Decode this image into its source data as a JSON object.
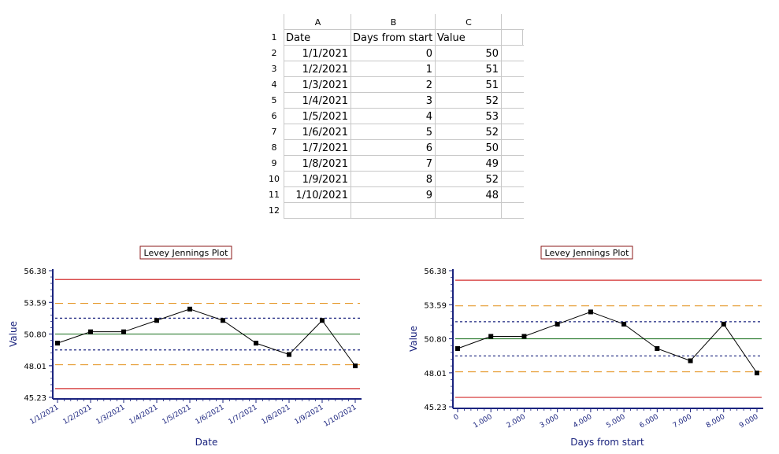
{
  "spreadsheet": {
    "columns": [
      "A",
      "B",
      "C"
    ],
    "row_numbers": [
      "1",
      "2",
      "3",
      "4",
      "5",
      "6",
      "7",
      "8",
      "9",
      "10",
      "11",
      "12"
    ],
    "header": [
      "Date",
      "Days from start",
      "Value"
    ],
    "rows": [
      [
        "1/1/2021",
        "0",
        "50"
      ],
      [
        "1/2/2021",
        "1",
        "51"
      ],
      [
        "1/3/2021",
        "2",
        "51"
      ],
      [
        "1/4/2021",
        "3",
        "52"
      ],
      [
        "1/5/2021",
        "4",
        "53"
      ],
      [
        "1/6/2021",
        "5",
        "52"
      ],
      [
        "1/7/2021",
        "6",
        "50"
      ],
      [
        "1/8/2021",
        "7",
        "49"
      ],
      [
        "1/9/2021",
        "8",
        "52"
      ],
      [
        "1/10/2021",
        "9",
        "48"
      ]
    ]
  },
  "chart_data": [
    {
      "type": "line",
      "title": "Levey Jennings Plot",
      "xlabel": "Date",
      "ylabel": "Value",
      "categories": [
        "1/1/2021",
        "1/2/2021",
        "1/3/2021",
        "1/4/2021",
        "1/5/2021",
        "1/6/2021",
        "1/7/2021",
        "1/8/2021",
        "1/9/2021",
        "1/10/2021"
      ],
      "values": [
        50,
        51,
        51,
        52,
        53,
        52,
        50,
        49,
        52,
        48
      ],
      "ylim": [
        45.23,
        56.38
      ],
      "yticks": [
        "45.23",
        "48.01",
        "50.80",
        "53.59",
        "56.38"
      ],
      "ytick_values": [
        45.23,
        48.01,
        50.8,
        53.59,
        56.38
      ],
      "control_lines": {
        "mean": 50.8,
        "sd1": [
          49.4,
          52.2
        ],
        "sd2": [
          48.1,
          53.5
        ],
        "sd3": [
          46.0,
          55.6
        ]
      },
      "colors": {
        "series": "#000000",
        "mean": "#2e7d32",
        "sd1": "#1a237e",
        "sd2": "#e69a2e",
        "sd3": "#d32f2f",
        "axis": "#1a237e",
        "title_border": "#8b1a1a"
      }
    },
    {
      "type": "line",
      "title": "Levey Jennings Plot",
      "xlabel": "Days from start",
      "ylabel": "Value",
      "x": [
        0,
        1,
        2,
        3,
        4,
        5,
        6,
        7,
        8,
        9
      ],
      "xticks": [
        "0",
        "1.000",
        "2.000",
        "3.000",
        "4.000",
        "5.000",
        "6.000",
        "7.000",
        "8.000",
        "9.000"
      ],
      "values": [
        50,
        51,
        51,
        52,
        53,
        52,
        50,
        49,
        52,
        48
      ],
      "ylim": [
        45.23,
        56.38
      ],
      "yticks": [
        "45.23",
        "48.01",
        "50.80",
        "53.59",
        "56.38"
      ],
      "ytick_values": [
        45.23,
        48.01,
        50.8,
        53.59,
        56.38
      ],
      "control_lines": {
        "mean": 50.8,
        "sd1": [
          49.4,
          52.2
        ],
        "sd2": [
          48.1,
          53.5
        ],
        "sd3": [
          46.0,
          55.6
        ]
      },
      "colors": {
        "series": "#000000",
        "mean": "#2e7d32",
        "sd1": "#1a237e",
        "sd2": "#e69a2e",
        "sd3": "#d32f2f",
        "axis": "#1a237e",
        "title_border": "#8b1a1a"
      }
    }
  ]
}
